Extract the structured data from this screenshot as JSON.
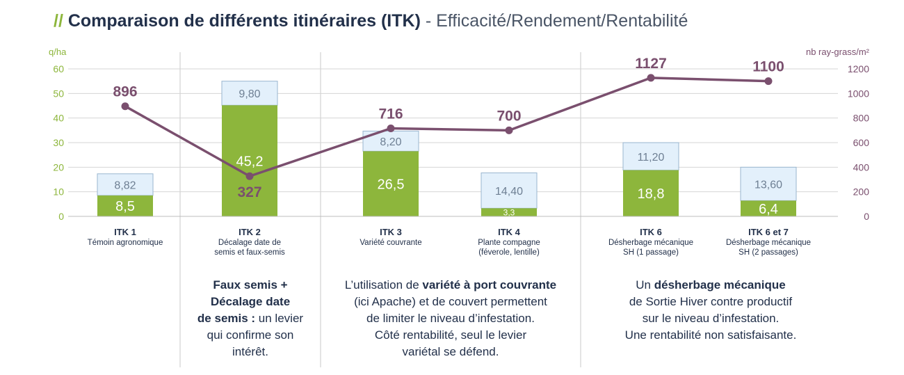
{
  "title": {
    "slash": "//",
    "main": "Comparaison de différents itinéraires (ITK)",
    "sub": "- Efficacité/Rendement/Rentabilité"
  },
  "chart_data": {
    "type": "bar",
    "stacked": true,
    "categories": [
      {
        "name": "ITK 1",
        "desc": [
          "Témoin agronomique"
        ]
      },
      {
        "name": "ITK 2",
        "desc": [
          "Décalage date de",
          "semis et faux-semis"
        ]
      },
      {
        "name": "ITK 3",
        "desc": [
          "Variété couvrante"
        ]
      },
      {
        "name": "ITK 4",
        "desc": [
          "Plante compagne",
          "(féverole, lentille)"
        ]
      },
      {
        "name": "ITK 6",
        "desc": [
          "Désherbage mécanique",
          "SH (1 passage)"
        ]
      },
      {
        "name": "ITK 6 et 7",
        "desc": [
          "Désherbage mécanique",
          "SH (2 passages)"
        ]
      }
    ],
    "bottom_values": [
      8.5,
      45.2,
      26.5,
      3.3,
      18.8,
      6.4
    ],
    "bottom_labels": [
      "8,5",
      "45,2",
      "26,5",
      "3,3",
      "18,8",
      "6,4"
    ],
    "top_values": [
      8.82,
      9.8,
      8.2,
      14.4,
      11.2,
      13.6
    ],
    "top_labels": [
      "8,82",
      "9,80",
      "8,20",
      "14,40",
      "11,20",
      "13,60"
    ],
    "line_values": [
      896,
      327,
      716,
      700,
      1127,
      1100
    ],
    "line_labels": [
      "896",
      "327",
      "716",
      "700",
      "1127",
      "1100"
    ],
    "y_left": {
      "label": "q/ha",
      "min": 0,
      "max": 60,
      "ticks": [
        "0",
        "10",
        "20",
        "30",
        "40",
        "50",
        "60"
      ]
    },
    "y_right": {
      "label": "nb ray-grass/m²",
      "min": 0,
      "max": 1200,
      "ticks": [
        "0",
        "200",
        "400",
        "600",
        "800",
        "1000",
        "1200"
      ]
    },
    "grid": true,
    "colors": {
      "bottom": "#8db63c",
      "top": "#e3f0fb",
      "top_border": "#9ab6cf",
      "line": "#7a4f6e",
      "left_axis": "#8db63c",
      "right_axis": "#7a4f6e"
    }
  },
  "notes": [
    {
      "lines": [
        [
          "b",
          "Faux semis +"
        ],
        [
          "b",
          "Décalage date"
        ],
        [
          "b",
          "de semis :"
        ],
        [
          "t",
          " un levier"
        ],
        [
          "br"
        ],
        [
          "t",
          "qui confirme son"
        ],
        [
          "br"
        ],
        [
          "t",
          "intérêt."
        ]
      ]
    },
    {
      "lines": [
        [
          "t",
          "L’utilisation de "
        ],
        [
          "b",
          "variété à port couvrante"
        ],
        [
          "br"
        ],
        [
          "t",
          "(ici Apache) et de couvert permettent"
        ],
        [
          "br"
        ],
        [
          "t",
          "de limiter le niveau d’infestation."
        ],
        [
          "br"
        ],
        [
          "t",
          "Côté rentabilité, seul le levier"
        ],
        [
          "br"
        ],
        [
          "t",
          "variétal se défend."
        ]
      ]
    },
    {
      "lines": [
        [
          "t",
          "Un "
        ],
        [
          "b",
          "désherbage mécanique"
        ],
        [
          "br"
        ],
        [
          "t",
          "de Sortie Hiver contre productif"
        ],
        [
          "br"
        ],
        [
          "t",
          "sur le niveau d’infestation."
        ],
        [
          "br"
        ],
        [
          "t",
          "Une rentabilité non satisfaisante."
        ]
      ]
    }
  ]
}
